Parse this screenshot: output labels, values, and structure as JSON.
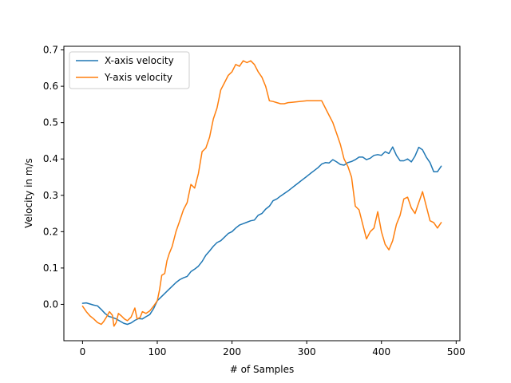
{
  "chart_data": {
    "type": "line",
    "title": "",
    "xlabel": "# of Samples",
    "ylabel": "Velocity in m/s",
    "xlim": [
      -25,
      505
    ],
    "ylim": [
      -0.1,
      0.71
    ],
    "xticks": [
      0,
      100,
      200,
      300,
      400,
      500
    ],
    "yticks": [
      0.0,
      0.1,
      0.2,
      0.3,
      0.4,
      0.5,
      0.6,
      0.7
    ],
    "xtick_labels": [
      "0",
      "100",
      "200",
      "300",
      "400",
      "500"
    ],
    "ytick_labels": [
      "0.0",
      "0.1",
      "0.2",
      "0.3",
      "0.4",
      "0.5",
      "0.6",
      "0.7"
    ],
    "grid": false,
    "legend_position": "top-left",
    "series": [
      {
        "name": "X-axis velocity",
        "color": "#1f77b4",
        "x": [
          0,
          5,
          10,
          15,
          20,
          25,
          30,
          35,
          40,
          45,
          50,
          55,
          60,
          65,
          70,
          75,
          80,
          85,
          90,
          95,
          100,
          105,
          110,
          115,
          120,
          125,
          130,
          135,
          140,
          145,
          150,
          155,
          160,
          165,
          170,
          175,
          180,
          185,
          190,
          195,
          200,
          205,
          210,
          215,
          220,
          225,
          230,
          235,
          240,
          245,
          250,
          255,
          260,
          265,
          270,
          275,
          280,
          285,
          290,
          295,
          300,
          305,
          310,
          315,
          320,
          325,
          330,
          335,
          340,
          345,
          350,
          355,
          360,
          365,
          370,
          375,
          380,
          385,
          390,
          395,
          400,
          405,
          410,
          415,
          420,
          425,
          430,
          435,
          440,
          445,
          450,
          455,
          460,
          465,
          470,
          475,
          480
        ],
        "y": [
          0.003,
          0.004,
          0.001,
          -0.002,
          -0.004,
          -0.014,
          -0.025,
          -0.033,
          -0.036,
          -0.04,
          -0.046,
          -0.052,
          -0.055,
          -0.051,
          -0.044,
          -0.039,
          -0.04,
          -0.034,
          -0.028,
          -0.012,
          0.01,
          0.02,
          0.03,
          0.04,
          0.05,
          0.06,
          0.068,
          0.073,
          0.077,
          0.09,
          0.097,
          0.105,
          0.118,
          0.135,
          0.147,
          0.16,
          0.17,
          0.175,
          0.185,
          0.195,
          0.2,
          0.21,
          0.218,
          0.222,
          0.226,
          0.23,
          0.232,
          0.245,
          0.25,
          0.262,
          0.27,
          0.285,
          0.29,
          0.298,
          0.305,
          0.312,
          0.32,
          0.328,
          0.336,
          0.344,
          0.352,
          0.36,
          0.368,
          0.376,
          0.386,
          0.39,
          0.389,
          0.398,
          0.392,
          0.385,
          0.383,
          0.39,
          0.393,
          0.398,
          0.405,
          0.405,
          0.398,
          0.402,
          0.41,
          0.412,
          0.41,
          0.42,
          0.415,
          0.433,
          0.41,
          0.395,
          0.395,
          0.4,
          0.392,
          0.408,
          0.432,
          0.425,
          0.405,
          0.39,
          0.365,
          0.365,
          0.38
        ]
      },
      {
        "name": "Y-axis velocity",
        "color": "#ff7f0e",
        "x": [
          0,
          5,
          10,
          15,
          20,
          25,
          28,
          32,
          36,
          40,
          42,
          45,
          48,
          52,
          56,
          60,
          65,
          70,
          73,
          77,
          80,
          85,
          90,
          95,
          100,
          103,
          106,
          110,
          113,
          116,
          120,
          125,
          130,
          135,
          140,
          145,
          150,
          155,
          160,
          165,
          170,
          175,
          180,
          185,
          190,
          195,
          200,
          205,
          210,
          215,
          220,
          225,
          230,
          235,
          240,
          245,
          250,
          255,
          260,
          265,
          270,
          275,
          280,
          290,
          300,
          310,
          315,
          320,
          325,
          330,
          335,
          340,
          345,
          350,
          355,
          360,
          365,
          370,
          375,
          380,
          385,
          390,
          395,
          400,
          405,
          410,
          415,
          420,
          425,
          430,
          435,
          440,
          445,
          450,
          455,
          460,
          465,
          470,
          475,
          480
        ],
        "y": [
          -0.005,
          -0.02,
          -0.032,
          -0.04,
          -0.05,
          -0.055,
          -0.048,
          -0.035,
          -0.02,
          -0.03,
          -0.06,
          -0.05,
          -0.025,
          -0.032,
          -0.04,
          -0.045,
          -0.035,
          -0.01,
          -0.04,
          -0.036,
          -0.02,
          -0.025,
          -0.018,
          -0.005,
          0.01,
          0.04,
          0.08,
          0.085,
          0.12,
          0.14,
          0.16,
          0.2,
          0.23,
          0.26,
          0.28,
          0.33,
          0.32,
          0.36,
          0.42,
          0.43,
          0.46,
          0.51,
          0.54,
          0.59,
          0.61,
          0.63,
          0.64,
          0.66,
          0.655,
          0.67,
          0.665,
          0.67,
          0.66,
          0.64,
          0.625,
          0.6,
          0.56,
          0.558,
          0.555,
          0.552,
          0.552,
          0.555,
          0.556,
          0.558,
          0.56,
          0.56,
          0.56,
          0.56,
          0.54,
          0.52,
          0.5,
          0.47,
          0.44,
          0.4,
          0.38,
          0.35,
          0.27,
          0.26,
          0.22,
          0.18,
          0.2,
          0.21,
          0.255,
          0.2,
          0.165,
          0.15,
          0.175,
          0.22,
          0.245,
          0.29,
          0.295,
          0.265,
          0.25,
          0.28,
          0.31,
          0.27,
          0.23,
          0.225,
          0.21,
          0.225
        ]
      }
    ]
  }
}
